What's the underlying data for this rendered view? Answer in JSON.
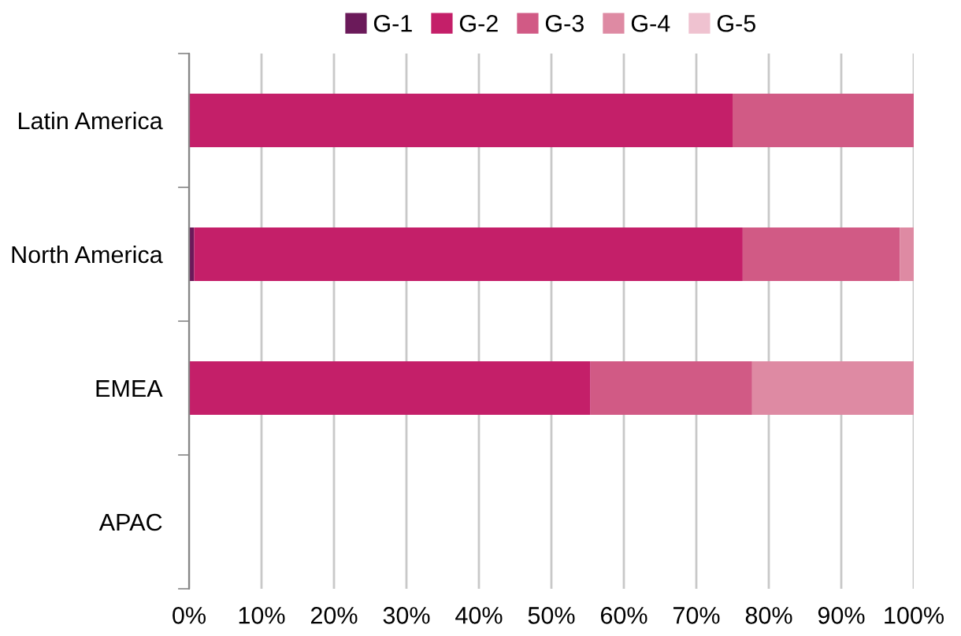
{
  "chart_data": {
    "type": "bar",
    "orientation": "horizontal",
    "stacked": true,
    "categories": [
      "Latin America",
      "North America",
      "EMEA",
      "APAC"
    ],
    "series": [
      {
        "name": "G-1",
        "color": "#6b1a5a",
        "values": [
          0,
          0.7,
          0,
          0
        ]
      },
      {
        "name": "G-2",
        "color": "#c41f69",
        "values": [
          75,
          75.7,
          55.4,
          0
        ]
      },
      {
        "name": "G-3",
        "color": "#d15a85",
        "values": [
          25,
          21.7,
          22.3,
          0
        ]
      },
      {
        "name": "G-4",
        "color": "#de8aa3",
        "values": [
          0,
          1.9,
          22.3,
          0
        ]
      },
      {
        "name": "G-5",
        "color": "#efc2d0",
        "values": [
          0,
          0,
          0,
          0
        ]
      }
    ],
    "xlim": [
      0,
      100
    ],
    "xticks": [
      {
        "value": 0,
        "label": "0%"
      },
      {
        "value": 10,
        "label": "10%"
      },
      {
        "value": 20,
        "label": "20%"
      },
      {
        "value": 30,
        "label": "30%"
      },
      {
        "value": 40,
        "label": "40%"
      },
      {
        "value": 50,
        "label": "50%"
      },
      {
        "value": 60,
        "label": "60%"
      },
      {
        "value": 70,
        "label": "70%"
      },
      {
        "value": 80,
        "label": "80%"
      },
      {
        "value": 90,
        "label": "90%"
      },
      {
        "value": 100,
        "label": "100%"
      }
    ],
    "grid": "x",
    "legend": "top"
  }
}
